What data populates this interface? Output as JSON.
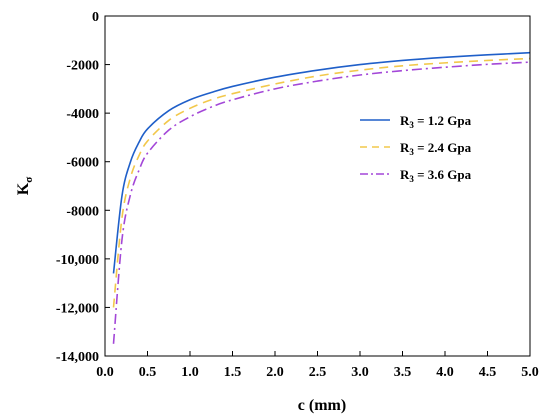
{
  "chart_data": {
    "type": "line",
    "xlabel": "c (mm)",
    "ylabel": "K",
    "ylabel_subscript": "σ",
    "xlim": [
      0.0,
      5.0
    ],
    "ylim": [
      -14000,
      0
    ],
    "xticks": [
      "0.0",
      "0.5",
      "1.0",
      "1.5",
      "2.0",
      "2.5",
      "3.0",
      "3.5",
      "4.0",
      "4.5",
      "5.0"
    ],
    "yticks": [
      "0",
      "-2000",
      "-4000",
      "-6000",
      "-8000",
      "-10,000",
      "-12,000",
      "-14,000"
    ],
    "legend_position": "right",
    "x": [
      0.1,
      0.2,
      0.3,
      0.4,
      0.5,
      0.75,
      1.0,
      1.25,
      1.5,
      2.0,
      2.5,
      3.0,
      3.5,
      4.0,
      4.5,
      5.0
    ],
    "series": [
      {
        "name": "R3 = 1.2 Gpa",
        "label_main": "R",
        "label_sub": "3",
        "label_rest": " = 1.2 Gpa",
        "color": "#1f5fc9",
        "dash": "solid",
        "values": [
          -10600,
          -7400,
          -6000,
          -5200,
          -4650,
          -3900,
          -3450,
          -3150,
          -2900,
          -2520,
          -2230,
          -2000,
          -1830,
          -1700,
          -1600,
          -1510
        ]
      },
      {
        "name": "R3 = 2.4 Gpa",
        "label_main": "R",
        "label_sub": "3",
        "label_rest": " = 2.4 Gpa",
        "color": "#f2c84b",
        "dash": "dashed",
        "values": [
          -12000,
          -8300,
          -6650,
          -5750,
          -5150,
          -4300,
          -3800,
          -3450,
          -3200,
          -2800,
          -2470,
          -2230,
          -2050,
          -1930,
          -1830,
          -1750
        ]
      },
      {
        "name": "R3 = 3.6 Gpa",
        "label_main": "R",
        "label_sub": "3",
        "label_rest": " = 3.6 Gpa",
        "color": "#a347d8",
        "dash": "dashdot",
        "values": [
          -13500,
          -9200,
          -7350,
          -6350,
          -5650,
          -4700,
          -4150,
          -3750,
          -3450,
          -3000,
          -2680,
          -2430,
          -2250,
          -2110,
          -1990,
          -1900
        ]
      }
    ]
  }
}
